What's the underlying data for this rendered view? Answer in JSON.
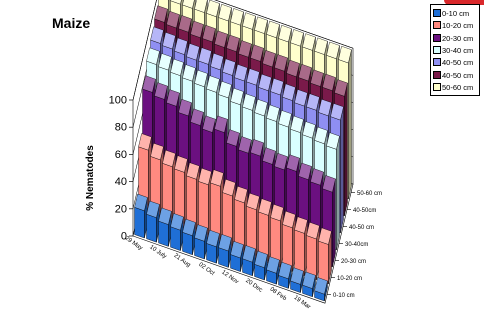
{
  "chart_data": {
    "type": "bar",
    "title": "Maize",
    "ylabel": "% Nematodes",
    "ylim": [
      0,
      100
    ],
    "yticks": [
      0,
      20,
      40,
      60,
      80,
      100
    ],
    "categories": [
      "29 May",
      "",
      "10 July",
      "",
      "21 Aug",
      "",
      "02 Oct",
      "",
      "12 Nov",
      "",
      "20 Dec",
      "",
      "08 Feb",
      "",
      "19 Mar",
      ""
    ],
    "series": [
      {
        "name": "0-10 cm",
        "color": "#1f6fd6",
        "values": [
          20,
          18,
          16,
          15,
          14,
          13,
          12,
          12,
          10,
          10,
          9,
          8,
          7,
          6,
          6,
          5
        ]
      },
      {
        "name": "10-20 cm",
        "color": "#ff8a80",
        "values": [
          52,
          48,
          46,
          45,
          43,
          42,
          44,
          40,
          38,
          36,
          35,
          34,
          32,
          31,
          30,
          29
        ]
      },
      {
        "name": "20-30 cm",
        "color": "#6b1080",
        "values": [
          82,
          80,
          78,
          74,
          70,
          68,
          71,
          64,
          62,
          63,
          60,
          59,
          61,
          58,
          57,
          55
        ]
      },
      {
        "name": "30-40 cm",
        "color": "#d9ffff",
        "values": [
          90,
          89,
          88,
          87,
          86,
          85,
          84,
          82,
          81,
          80,
          79,
          78,
          77,
          76,
          75,
          74
        ]
      },
      {
        "name": "40-50 cm",
        "color": "#8f8ff2",
        "values": [
          93,
          92,
          91,
          90,
          90,
          89,
          88,
          87,
          87,
          86,
          86,
          85,
          84,
          84,
          83,
          83
        ]
      },
      {
        "name": "40-50 cm",
        "color": "#7a1a4a",
        "values": [
          96,
          95,
          95,
          94,
          94,
          93,
          93,
          92,
          92,
          91,
          91,
          90,
          90,
          89,
          89,
          88
        ]
      },
      {
        "name": "50-60 cm",
        "color": "#ffffcc",
        "values": [
          100,
          100,
          100,
          100,
          100,
          100,
          100,
          100,
          100,
          100,
          100,
          100,
          100,
          100,
          100,
          100
        ]
      }
    ],
    "depth_labels": [
      "0-10 cm",
      "10-20 cm",
      "20-30 cm",
      "30-40cm",
      "40-50 cm",
      "40-50cm",
      "50-60 cm"
    ],
    "legend_position": "top-right",
    "grid": true
  }
}
